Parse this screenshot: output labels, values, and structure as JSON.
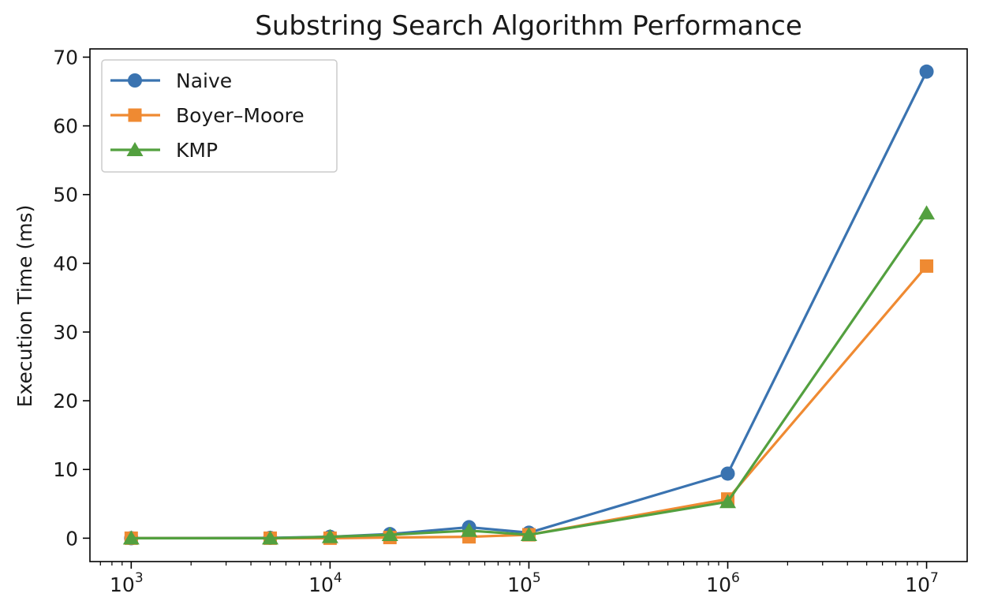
{
  "chart_data": {
    "type": "line",
    "title": "Substring Search Algorithm Performance",
    "xlabel": "",
    "ylabel": "Execution Time (ms)",
    "x_scale": "log",
    "x": [
      1000,
      5000,
      10000,
      20000,
      50000,
      100000,
      1000000,
      10000000
    ],
    "xlim": [
      620,
      16000000
    ],
    "ylim": [
      -3.4,
      71.2
    ],
    "x_ticks": [
      {
        "value": 1000,
        "base": "10",
        "exp": "3"
      },
      {
        "value": 10000,
        "base": "10",
        "exp": "4"
      },
      {
        "value": 100000,
        "base": "10",
        "exp": "5"
      },
      {
        "value": 1000000,
        "base": "10",
        "exp": "6"
      },
      {
        "value": 10000000,
        "base": "10",
        "exp": "7"
      }
    ],
    "y_ticks": [
      0,
      10,
      20,
      30,
      40,
      50,
      60,
      70
    ],
    "grid": false,
    "legend_position": "upper-left",
    "series": [
      {
        "name": "Naive",
        "marker": "circle",
        "color": "#3a73b0",
        "values": [
          0.0,
          0.05,
          0.2,
          0.6,
          1.6,
          0.8,
          9.4,
          67.9
        ]
      },
      {
        "name": "Boyer–Moore",
        "marker": "square",
        "color": "#ef8a32",
        "values": [
          0.0,
          0.0,
          0.0,
          0.1,
          0.2,
          0.5,
          5.7,
          39.6
        ]
      },
      {
        "name": "KMP",
        "marker": "triangle",
        "color": "#53a03f",
        "values": [
          0.0,
          0.0,
          0.2,
          0.5,
          1.1,
          0.5,
          5.3,
          47.3
        ]
      }
    ]
  }
}
